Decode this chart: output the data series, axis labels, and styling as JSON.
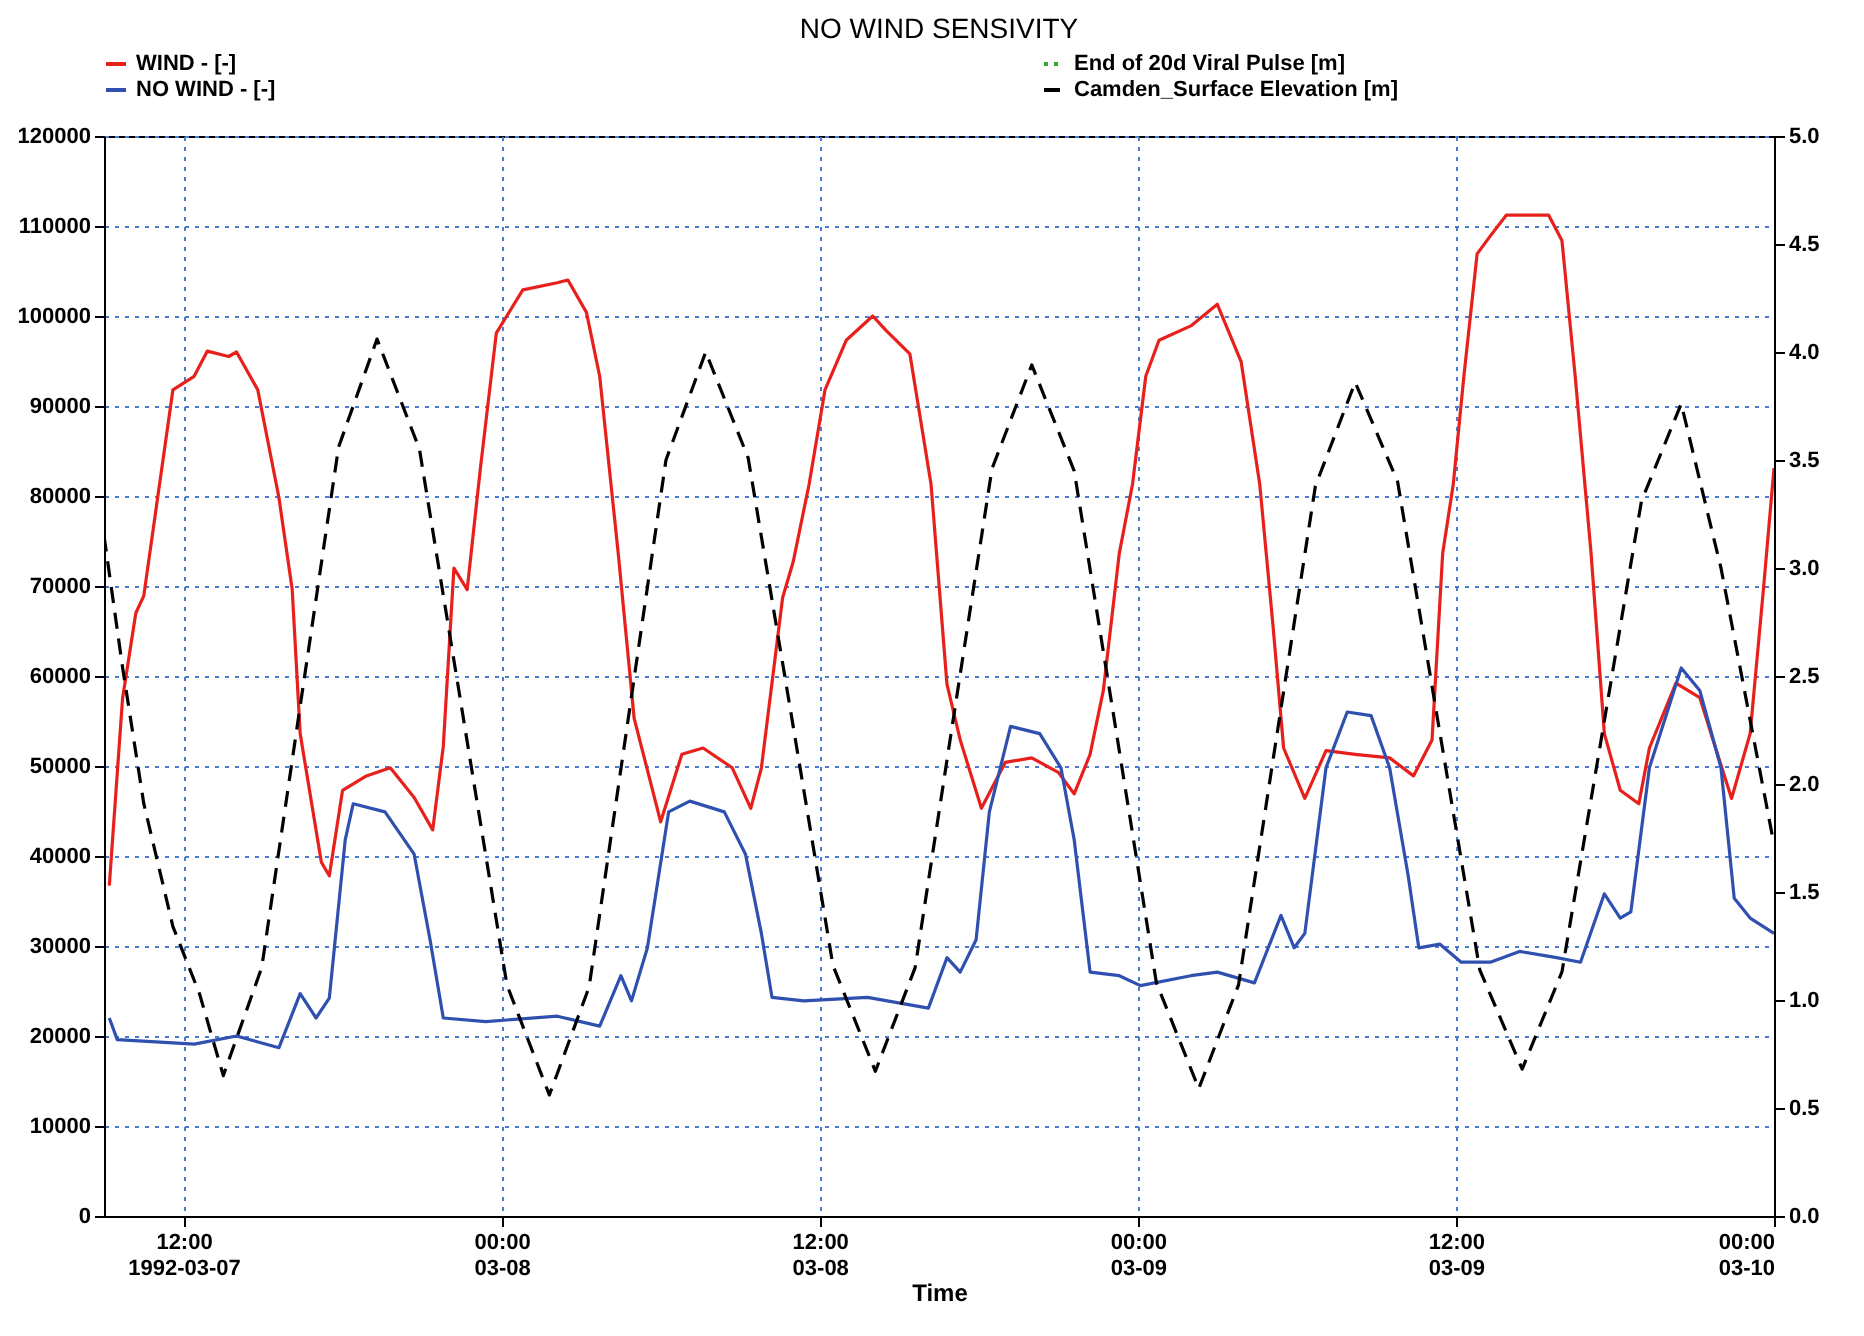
{
  "chart_data": {
    "type": "line",
    "title": "NO WIND SENSIVITY",
    "xlabel": "Time",
    "xlim": [
      "1992-03-07T09:00",
      "1992-03-10T00:00"
    ],
    "xticks": [
      {
        "value": "1992-03-07T12:00",
        "label": "12:00\n1992-03-07"
      },
      {
        "value": "1992-03-08T00:00",
        "label": "00:00\n03-08"
      },
      {
        "value": "1992-03-08T12:00",
        "label": "12:00\n03-08"
      },
      {
        "value": "1992-03-09T00:00",
        "label": "00:00\n03-09"
      },
      {
        "value": "1992-03-09T12:00",
        "label": "12:00\n03-09"
      },
      {
        "value": "1992-03-10T00:00",
        "label": "00:00\n03-10"
      }
    ],
    "ylim": [
      0,
      120000
    ],
    "yticks": [
      0,
      10000,
      20000,
      30000,
      40000,
      50000,
      60000,
      70000,
      80000,
      90000,
      100000,
      110000,
      120000
    ],
    "y2lim": [
      0,
      5
    ],
    "y2ticks": [
      {
        "value": 0,
        "label": "0.0"
      },
      {
        "value": 0.5,
        "label": "0.5"
      },
      {
        "value": 1,
        "label": "1.0"
      },
      {
        "value": 1.5,
        "label": "1.5"
      },
      {
        "value": 2,
        "label": "2.0"
      },
      {
        "value": 2.5,
        "label": "2.5"
      },
      {
        "value": 3,
        "label": "3.0"
      },
      {
        "value": 3.5,
        "label": "3.5"
      },
      {
        "value": 4,
        "label": "4.0"
      },
      {
        "value": 4.5,
        "label": "4.5"
      },
      {
        "value": 5,
        "label": "5.0"
      }
    ],
    "grid": true,
    "legend": "top",
    "series": [
      {
        "name": "WIND - [-]",
        "color": "#e8201c",
        "line_style": "solid",
        "x": [
          "1992-03-07T09:12",
          "1992-03-07T09:42",
          "1992-03-07T10:12",
          "1992-03-07T10:30",
          "1992-03-07T11:36",
          "1992-03-07T12:24",
          "1992-03-07T12:54",
          "1992-03-07T13:42",
          "1992-03-07T14:00",
          "1992-03-07T14:48",
          "1992-03-07T15:36",
          "1992-03-07T16:06",
          "1992-03-07T16:24",
          "1992-03-07T17:12",
          "1992-03-07T17:30",
          "1992-03-07T18:00",
          "1992-03-07T18:54",
          "1992-03-07T19:48",
          "1992-03-07T20:42",
          "1992-03-07T21:24",
          "1992-03-07T21:48",
          "1992-03-07T22:12",
          "1992-03-07T22:42",
          "1992-03-07T23:12",
          "1992-03-07T23:48",
          "1992-03-08T00:48",
          "1992-03-08T02:06",
          "1992-03-08T02:30",
          "1992-03-08T03:12",
          "1992-03-08T03:42",
          "1992-03-08T04:24",
          "1992-03-08T05:00",
          "1992-03-08T06:00",
          "1992-03-08T06:48",
          "1992-03-08T07:36",
          "1992-03-08T08:42",
          "1992-03-08T09:24",
          "1992-03-08T09:48",
          "1992-03-08T10:36",
          "1992-03-08T11:00",
          "1992-03-08T11:36",
          "1992-03-08T12:12",
          "1992-03-08T13:00",
          "1992-03-08T14:00",
          "1992-03-08T14:30",
          "1992-03-08T15:24",
          "1992-03-08T16:12",
          "1992-03-08T16:48",
          "1992-03-08T17:18",
          "1992-03-08T18:06",
          "1992-03-08T19:00",
          "1992-03-08T20:00",
          "1992-03-08T21:00",
          "1992-03-08T21:36",
          "1992-03-08T22:12",
          "1992-03-08T22:42",
          "1992-03-08T23:18",
          "1992-03-08T23:48",
          "1992-03-09T00:18",
          "1992-03-09T00:48",
          "1992-03-09T02:00",
          "1992-03-09T03:00",
          "1992-03-09T03:54",
          "1992-03-09T04:36",
          "1992-03-09T05:06",
          "1992-03-09T05:30",
          "1992-03-09T06:18",
          "1992-03-09T07:06",
          "1992-03-09T08:12",
          "1992-03-09T09:30",
          "1992-03-09T10:24",
          "1992-03-09T11:06",
          "1992-03-09T11:30",
          "1992-03-09T11:54",
          "1992-03-09T12:18",
          "1992-03-09T12:48",
          "1992-03-09T13:18",
          "1992-03-09T13:54",
          "1992-03-09T15:30",
          "1992-03-09T16:00",
          "1992-03-09T16:30",
          "1992-03-09T17:06",
          "1992-03-09T17:36",
          "1992-03-09T18:12",
          "1992-03-09T18:54",
          "1992-03-09T19:18",
          "1992-03-09T20:18",
          "1992-03-09T21:12",
          "1992-03-09T21:42",
          "1992-03-09T22:24",
          "1992-03-09T23:06",
          "1992-03-09T23:36",
          "1992-03-10T00:00"
        ],
        "values": [
          36700,
          57500,
          67000,
          68900,
          91800,
          93300,
          96100,
          95500,
          96000,
          91800,
          79800,
          69600,
          53600,
          39300,
          37800,
          47300,
          48900,
          49800,
          46500,
          42900,
          52200,
          72000,
          69600,
          83100,
          98100,
          102900,
          103700,
          104000,
          100400,
          93300,
          73600,
          55300,
          43800,
          51300,
          52000,
          49800,
          45300,
          49800,
          68700,
          72700,
          81300,
          91800,
          97300,
          100000,
          98400,
          95800,
          81300,
          59100,
          52900,
          45300,
          50400,
          50900,
          49300,
          46900,
          51300,
          58400,
          73600,
          81300,
          93300,
          97300,
          98900,
          101300,
          94900,
          81300,
          65600,
          52000,
          46400,
          51700,
          51300,
          50900,
          48900,
          52900,
          73600,
          81300,
          93300,
          106900,
          108900,
          111200,
          111200,
          108400,
          93300,
          73600,
          53600,
          47300,
          45800,
          52000,
          59200,
          57600,
          52900,
          46400,
          53600,
          69600,
          83100
        ]
      },
      {
        "name": "NO WIND - [-]",
        "color": "#3050b0",
        "line_style": "solid",
        "x": [
          "1992-03-07T09:12",
          "1992-03-07T09:30",
          "1992-03-07T12:24",
          "1992-03-07T14:00",
          "1992-03-07T15:36",
          "1992-03-07T16:24",
          "1992-03-07T17:00",
          "1992-03-07T17:30",
          "1992-03-07T18:06",
          "1992-03-07T18:24",
          "1992-03-07T19:36",
          "1992-03-07T20:42",
          "1992-03-07T21:18",
          "1992-03-07T21:48",
          "1992-03-07T23:24",
          "1992-03-08T02:06",
          "1992-03-08T03:42",
          "1992-03-08T04:30",
          "1992-03-08T04:54",
          "1992-03-08T05:30",
          "1992-03-08T06:18",
          "1992-03-08T07:06",
          "1992-03-08T08:24",
          "1992-03-08T09:12",
          "1992-03-08T09:48",
          "1992-03-08T10:12",
          "1992-03-08T11:24",
          "1992-03-08T13:48",
          "1992-03-08T16:06",
          "1992-03-08T16:48",
          "1992-03-08T17:18",
          "1992-03-08T17:54",
          "1992-03-08T18:24",
          "1992-03-08T19:12",
          "1992-03-08T20:18",
          "1992-03-08T21:06",
          "1992-03-08T21:36",
          "1992-03-08T22:12",
          "1992-03-08T23:18",
          "1992-03-09T00:06",
          "1992-03-09T02:00",
          "1992-03-09T03:00",
          "1992-03-09T04:24",
          "1992-03-09T05:24",
          "1992-03-09T05:54",
          "1992-03-09T06:18",
          "1992-03-09T07:06",
          "1992-03-09T07:54",
          "1992-03-09T08:48",
          "1992-03-09T09:30",
          "1992-03-09T10:12",
          "1992-03-09T10:36",
          "1992-03-09T11:24",
          "1992-03-09T12:12",
          "1992-03-09T13:18",
          "1992-03-09T14:24",
          "1992-03-09T15:48",
          "1992-03-09T16:42",
          "1992-03-09T17:36",
          "1992-03-09T18:12",
          "1992-03-09T18:36",
          "1992-03-09T19:18",
          "1992-03-09T20:30",
          "1992-03-09T21:12",
          "1992-03-09T22:00",
          "1992-03-09T22:30",
          "1992-03-09T23:06",
          "1992-03-10T00:00"
        ],
        "values": [
          22000,
          19600,
          19100,
          20000,
          18700,
          24700,
          22000,
          24200,
          41800,
          45800,
          44900,
          40200,
          30700,
          22000,
          21600,
          22200,
          21100,
          26700,
          23900,
          29800,
          44900,
          46100,
          44900,
          40200,
          31400,
          24300,
          23900,
          24300,
          23100,
          28700,
          27100,
          30700,
          44900,
          54400,
          53600,
          49800,
          41800,
          27100,
          26700,
          25600,
          26700,
          27100,
          25900,
          33400,
          29800,
          31400,
          49800,
          56000,
          55600,
          49800,
          37800,
          29800,
          30200,
          28200,
          28200,
          29400,
          28700,
          28200,
          35800,
          33100,
          33800,
          49800,
          60900,
          58400,
          49800,
          35300,
          33100,
          31400
        ]
      },
      {
        "name": "End of 20d Viral Pulse [m]",
        "color": "#33aa33",
        "line_style": "dotted",
        "axis": "y2"
      },
      {
        "name": "Camden_Surface Elevation [m]",
        "color": "#000000",
        "line_style": "dashed",
        "axis": "y2",
        "x": [
          "1992-03-07T09:00",
          "1992-03-07T09:42",
          "1992-03-07T10:30",
          "1992-03-07T11:36",
          "1992-03-07T12:36",
          "1992-03-07T13:30",
          "1992-03-07T14:57",
          "1992-03-07T16:24",
          "1992-03-07T17:51",
          "1992-03-07T19:18",
          "1992-03-07T20:54",
          "1992-03-07T22:33",
          "1992-03-08T00:12",
          "1992-03-08T01:48",
          "1992-03-08T03:18",
          "1992-03-08T04:45",
          "1992-03-08T06:12",
          "1992-03-08T07:42",
          "1992-03-08T09:18",
          "1992-03-08T10:54",
          "1992-03-08T12:30",
          "1992-03-08T14:06",
          "1992-03-08T15:36",
          "1992-03-08T17:03",
          "1992-03-08T18:30",
          "1992-03-08T20:00",
          "1992-03-08T21:36",
          "1992-03-08T23:09",
          "1992-03-09T00:42",
          "1992-03-09T02:18",
          "1992-03-09T03:48",
          "1992-03-09T05:15",
          "1992-03-09T06:42",
          "1992-03-09T08:12",
          "1992-03-09T09:48",
          "1992-03-09T11:21",
          "1992-03-09T12:54",
          "1992-03-09T14:30",
          "1992-03-09T16:00",
          "1992-03-09T17:30",
          "1992-03-09T19:00",
          "1992-03-09T20:30",
          "1992-03-09T22:00",
          "1992-03-09T23:00",
          "1992-03-10T00:00"
        ],
        "values": [
          3.15,
          2.54,
          1.91,
          1.34,
          1.03,
          0.65,
          1.15,
          2.36,
          3.56,
          4.06,
          3.55,
          2.31,
          1.07,
          0.56,
          1.06,
          2.28,
          3.5,
          4.0,
          3.51,
          2.34,
          1.16,
          0.67,
          1.15,
          2.31,
          3.46,
          3.94,
          3.45,
          2.27,
          1.08,
          0.59,
          1.07,
          2.23,
          3.38,
          3.86,
          3.4,
          2.27,
          1.14,
          0.68,
          1.13,
          2.22,
          3.31,
          3.76,
          3.0,
          2.36,
          1.72
        ]
      }
    ]
  }
}
